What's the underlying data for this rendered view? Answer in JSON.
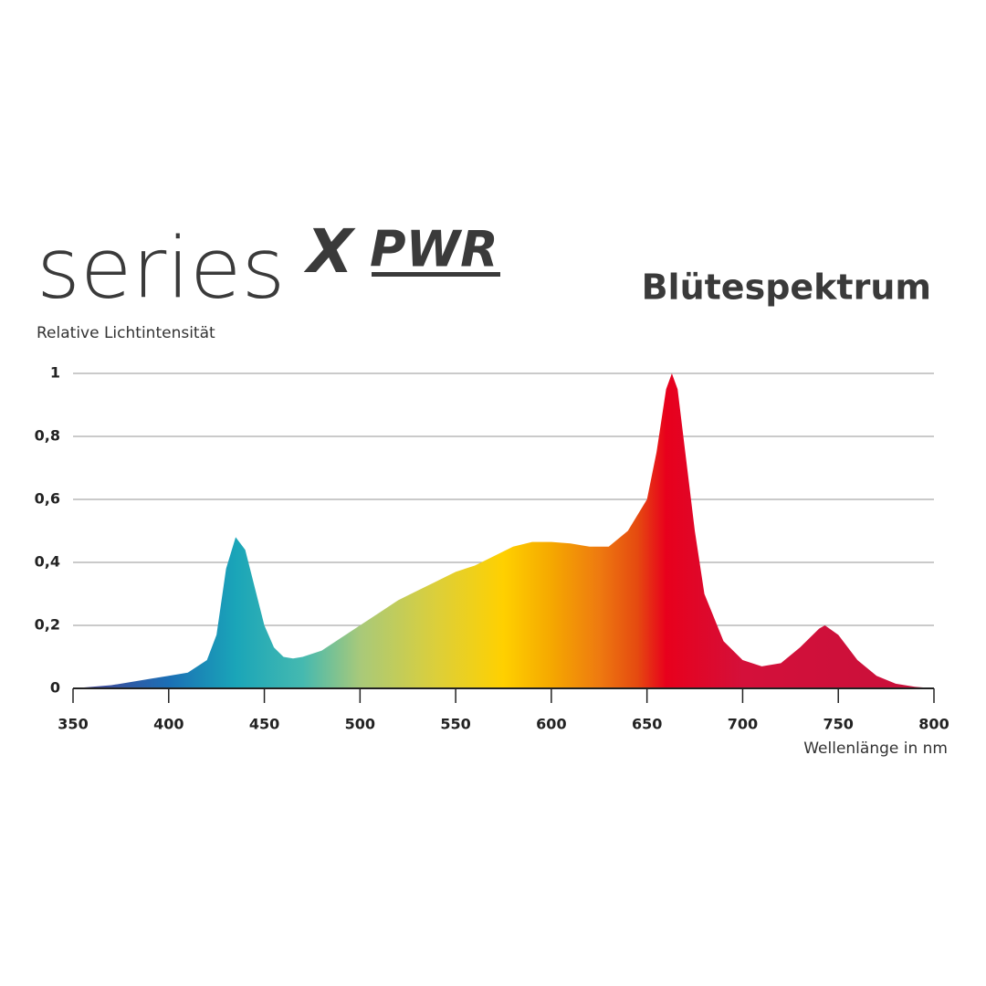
{
  "brand": {
    "name": "series",
    "mark": "X",
    "suffix": "PWR"
  },
  "chart_data": {
    "type": "area",
    "title": "Blütespektrum",
    "ylabel": "Relative Lichtintensität",
    "xlabel": "Wellenlänge in nm",
    "x": [
      350,
      360,
      370,
      380,
      390,
      400,
      410,
      420,
      425,
      430,
      435,
      440,
      445,
      450,
      455,
      460,
      465,
      470,
      480,
      490,
      500,
      510,
      520,
      530,
      540,
      550,
      560,
      570,
      580,
      590,
      600,
      610,
      620,
      630,
      640,
      650,
      655,
      660,
      663,
      666,
      670,
      675,
      680,
      690,
      700,
      710,
      720,
      730,
      740,
      743,
      750,
      760,
      770,
      780,
      790,
      800
    ],
    "values": [
      0,
      0.005,
      0.01,
      0.02,
      0.03,
      0.04,
      0.05,
      0.09,
      0.17,
      0.38,
      0.48,
      0.44,
      0.32,
      0.2,
      0.13,
      0.1,
      0.095,
      0.1,
      0.12,
      0.16,
      0.2,
      0.24,
      0.28,
      0.31,
      0.34,
      0.37,
      0.39,
      0.42,
      0.45,
      0.465,
      0.465,
      0.46,
      0.45,
      0.45,
      0.5,
      0.6,
      0.75,
      0.95,
      1,
      0.95,
      0.75,
      0.5,
      0.3,
      0.15,
      0.09,
      0.07,
      0.08,
      0.13,
      0.19,
      0.2,
      0.17,
      0.09,
      0.04,
      0.015,
      0.005,
      0
    ],
    "xlim": [
      350,
      800
    ],
    "xticks": [
      350,
      400,
      450,
      500,
      550,
      600,
      650,
      700,
      750,
      800
    ],
    "ylim": [
      0,
      1
    ],
    "yticks": [
      0,
      {
        "value": 0.2,
        "label": "0,2"
      },
      {
        "value": 0.4,
        "label": "0,4"
      },
      {
        "value": 0.6,
        "label": "0,6"
      },
      {
        "value": 0.8,
        "label": "0,8"
      },
      1
    ],
    "grid": true,
    "gradient": [
      {
        "x": 350,
        "color": "#4a3d8f"
      },
      {
        "x": 400,
        "color": "#1b6fb5"
      },
      {
        "x": 435,
        "color": "#1aa5b8"
      },
      {
        "x": 470,
        "color": "#45b9b0"
      },
      {
        "x": 500,
        "color": "#a8c97a"
      },
      {
        "x": 540,
        "color": "#dccf3a"
      },
      {
        "x": 575,
        "color": "#ffd000"
      },
      {
        "x": 600,
        "color": "#f5a800"
      },
      {
        "x": 625,
        "color": "#ee7a10"
      },
      {
        "x": 645,
        "color": "#e54a10"
      },
      {
        "x": 660,
        "color": "#e8001c"
      },
      {
        "x": 700,
        "color": "#d4103a"
      },
      {
        "x": 800,
        "color": "#c8103a"
      }
    ]
  }
}
